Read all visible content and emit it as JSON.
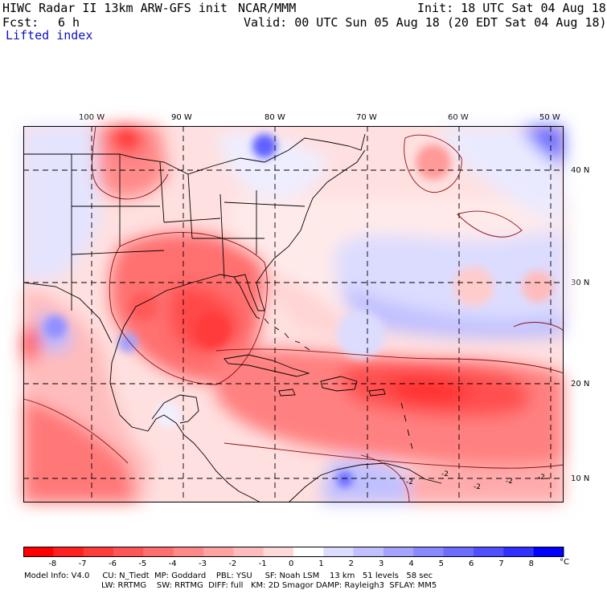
{
  "header": {
    "title": "HIWC Radar II 13km ARW-GFS init",
    "org": "NCAR/MMM",
    "init": "Init: 18 UTC Sat 04 Aug 18",
    "fcst_label": "Fcst:",
    "fcst_value": "6 h",
    "valid": "Valid: 00 UTC Sun 05 Aug 18 (20 EDT Sat 04 Aug 18)",
    "field": "Lifted index"
  },
  "map": {
    "lon_labels": [
      "100 W",
      "90 W",
      "80 W",
      "70 W",
      "60 W",
      "50 W"
    ],
    "lat_labels": [
      "40 N",
      "30 N",
      "20 N",
      "10 N"
    ],
    "contour_labels": [
      "-2",
      "-2",
      "-2",
      "-2",
      "-2"
    ]
  },
  "colorbar": {
    "ticks": [
      "-8",
      "-7",
      "-6",
      "-5",
      "-4",
      "-3",
      "-2",
      "-1",
      "0",
      "1",
      "2",
      "3",
      "4",
      "5",
      "6",
      "7",
      "8"
    ],
    "unit": "°C",
    "colors": [
      "#ff0000",
      "#ff2020",
      "#ff3c3c",
      "#ff5555",
      "#ff6e6e",
      "#ff8888",
      "#ffa2a2",
      "#ffbcbc",
      "#ffd8d8",
      "#ffffff",
      "#dcdcff",
      "#c0c0ff",
      "#a4a4ff",
      "#8888ff",
      "#6c6cff",
      "#5050ff",
      "#3030ff",
      "#0000ff"
    ]
  },
  "footer": {
    "line1": "Model Info: V4.0     CU: N_Tiedt  MP: Goddard    PBL: YSU     SF: Noah LSM    13 km   51 levels   58 sec",
    "line2": "LW: RRTMG    SW: RRTMG  DIFF: full   KM: 2D Smagor DAMP: Rayleigh3  SFLAY: MM5"
  }
}
